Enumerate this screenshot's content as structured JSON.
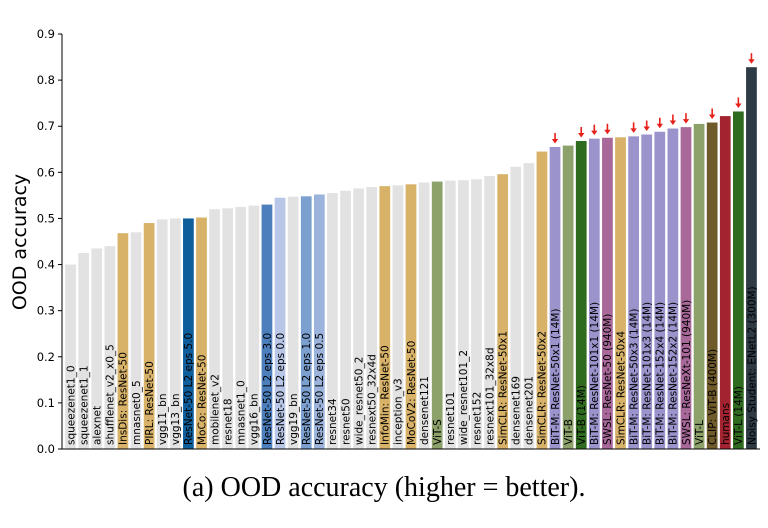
{
  "chart_data": {
    "type": "bar",
    "ylabel": "OOD accuracy",
    "ylim": [
      0.0,
      0.9
    ],
    "yticks": [
      0.0,
      0.1,
      0.2,
      0.3,
      0.4,
      0.5,
      0.6,
      0.7,
      0.8,
      0.9
    ],
    "ytick_labels": [
      "0.0",
      "0.1",
      "0.2",
      "0.3",
      "0.4",
      "0.5",
      "0.6",
      "0.7",
      "0.8",
      "0.9"
    ],
    "categories": [
      "squeezenet1_0",
      "squeezenet1_1",
      "alexnet",
      "shufflenet_v2_x0_5",
      "InsDis: ResNet-50",
      "mnasnet0_5",
      "PIRL: ResNet-50",
      "vgg11_bn",
      "vgg13_bn",
      "ResNet-50 L2 eps 5.0",
      "MoCo: ResNet-50",
      "mobilenet_v2",
      "resnet18",
      "mnasnet1_0",
      "vgg16_bn",
      "ResNet-50 L2 eps 3.0",
      "ResNet-50 L2 eps 0.0",
      "vgg19_bn",
      "ResNet-50 L2 eps 1.0",
      "ResNet-50 L2 eps 0.5",
      "resnet34",
      "resnet50",
      "wide_resnet50_2",
      "resnext50_32x4d",
      "InfoMin: ResNet-50",
      "inception_v3",
      "MoCoV2: ResNet-50",
      "densenet121",
      "ViT-S",
      "resnet101",
      "wide_resnet101_2",
      "resnet152",
      "resnext101_32x8d",
      "SimCLR: ResNet-50x1",
      "densenet169",
      "densenet201",
      "SimCLR: ResNet-50x2",
      "BiT-M: ResNet-50x1 (14M)",
      "ViT-B",
      "ViT-B (14M)",
      "BiT-M: ResNet-101x1 (14M)",
      "SWSL: ResNet-50 (940M)",
      "SimCLR: ResNet-50x4",
      "BiT-M: ResNet-50x3 (14M)",
      "BiT-M: ResNet-101x3 (14M)",
      "BiT-M: ResNet-152x4 (14M)",
      "BiT-M: ResNet-152x2 (14M)",
      "SWSL: ResNeXt-101 (940M)",
      "ViT-L",
      "CLIP: ViT-B (400M)",
      "humans",
      "ViT-L (14M)",
      "Noisy Student: ENetL2 (300M)"
    ],
    "values": [
      0.4,
      0.425,
      0.435,
      0.44,
      0.468,
      0.47,
      0.49,
      0.498,
      0.5,
      0.5,
      0.502,
      0.52,
      0.522,
      0.525,
      0.528,
      0.53,
      0.545,
      0.547,
      0.548,
      0.552,
      0.555,
      0.56,
      0.565,
      0.568,
      0.57,
      0.572,
      0.574,
      0.578,
      0.58,
      0.582,
      0.583,
      0.585,
      0.592,
      0.596,
      0.612,
      0.62,
      0.645,
      0.655,
      0.658,
      0.668,
      0.673,
      0.675,
      0.676,
      0.678,
      0.682,
      0.688,
      0.695,
      0.698,
      0.705,
      0.708,
      0.722,
      0.732,
      0.828
    ],
    "colors": [
      "#e2e2e2",
      "#e2e2e2",
      "#e2e2e2",
      "#e2e2e2",
      "#d7b268",
      "#e2e2e2",
      "#d7b268",
      "#e2e2e2",
      "#e2e2e2",
      "#0f5e9c",
      "#d7b268",
      "#e2e2e2",
      "#e2e2e2",
      "#e2e2e2",
      "#e2e2e2",
      "#4d7fbd",
      "#b8c7e7",
      "#e2e2e2",
      "#7b9fcf",
      "#9cb4dc",
      "#e2e2e2",
      "#e2e2e2",
      "#e2e2e2",
      "#e2e2e2",
      "#d7b268",
      "#e2e2e2",
      "#d7b268",
      "#e2e2e2",
      "#8da16b",
      "#e2e2e2",
      "#e2e2e2",
      "#e2e2e2",
      "#e2e2e2",
      "#d7b268",
      "#e2e2e2",
      "#e2e2e2",
      "#d7b268",
      "#9a93cc",
      "#8da16b",
      "#2f6b1e",
      "#9a93cc",
      "#a8689a",
      "#d7b268",
      "#9a93cc",
      "#9a93cc",
      "#9a93cc",
      "#9a93cc",
      "#a8689a",
      "#8da16b",
      "#6f5a2a",
      "#a32430",
      "#2f6b1e",
      "#2e3a44"
    ],
    "arrow_marked": [
      "BiT-M: ResNet-50x1 (14M)",
      "ViT-B (14M)",
      "BiT-M: ResNet-101x1 (14M)",
      "SWSL: ResNet-50 (940M)",
      "BiT-M: ResNet-50x3 (14M)",
      "BiT-M: ResNet-101x3 (14M)",
      "BiT-M: ResNet-152x4 (14M)",
      "BiT-M: ResNet-152x2 (14M)",
      "SWSL: ResNeXt-101 (940M)",
      "CLIP: ViT-B (400M)",
      "ViT-L (14M)",
      "Noisy Student: ENetL2 (300M)"
    ],
    "arrow_color": "#e8201a",
    "grid": false
  },
  "caption": "(a) OOD accuracy (higher = better)."
}
